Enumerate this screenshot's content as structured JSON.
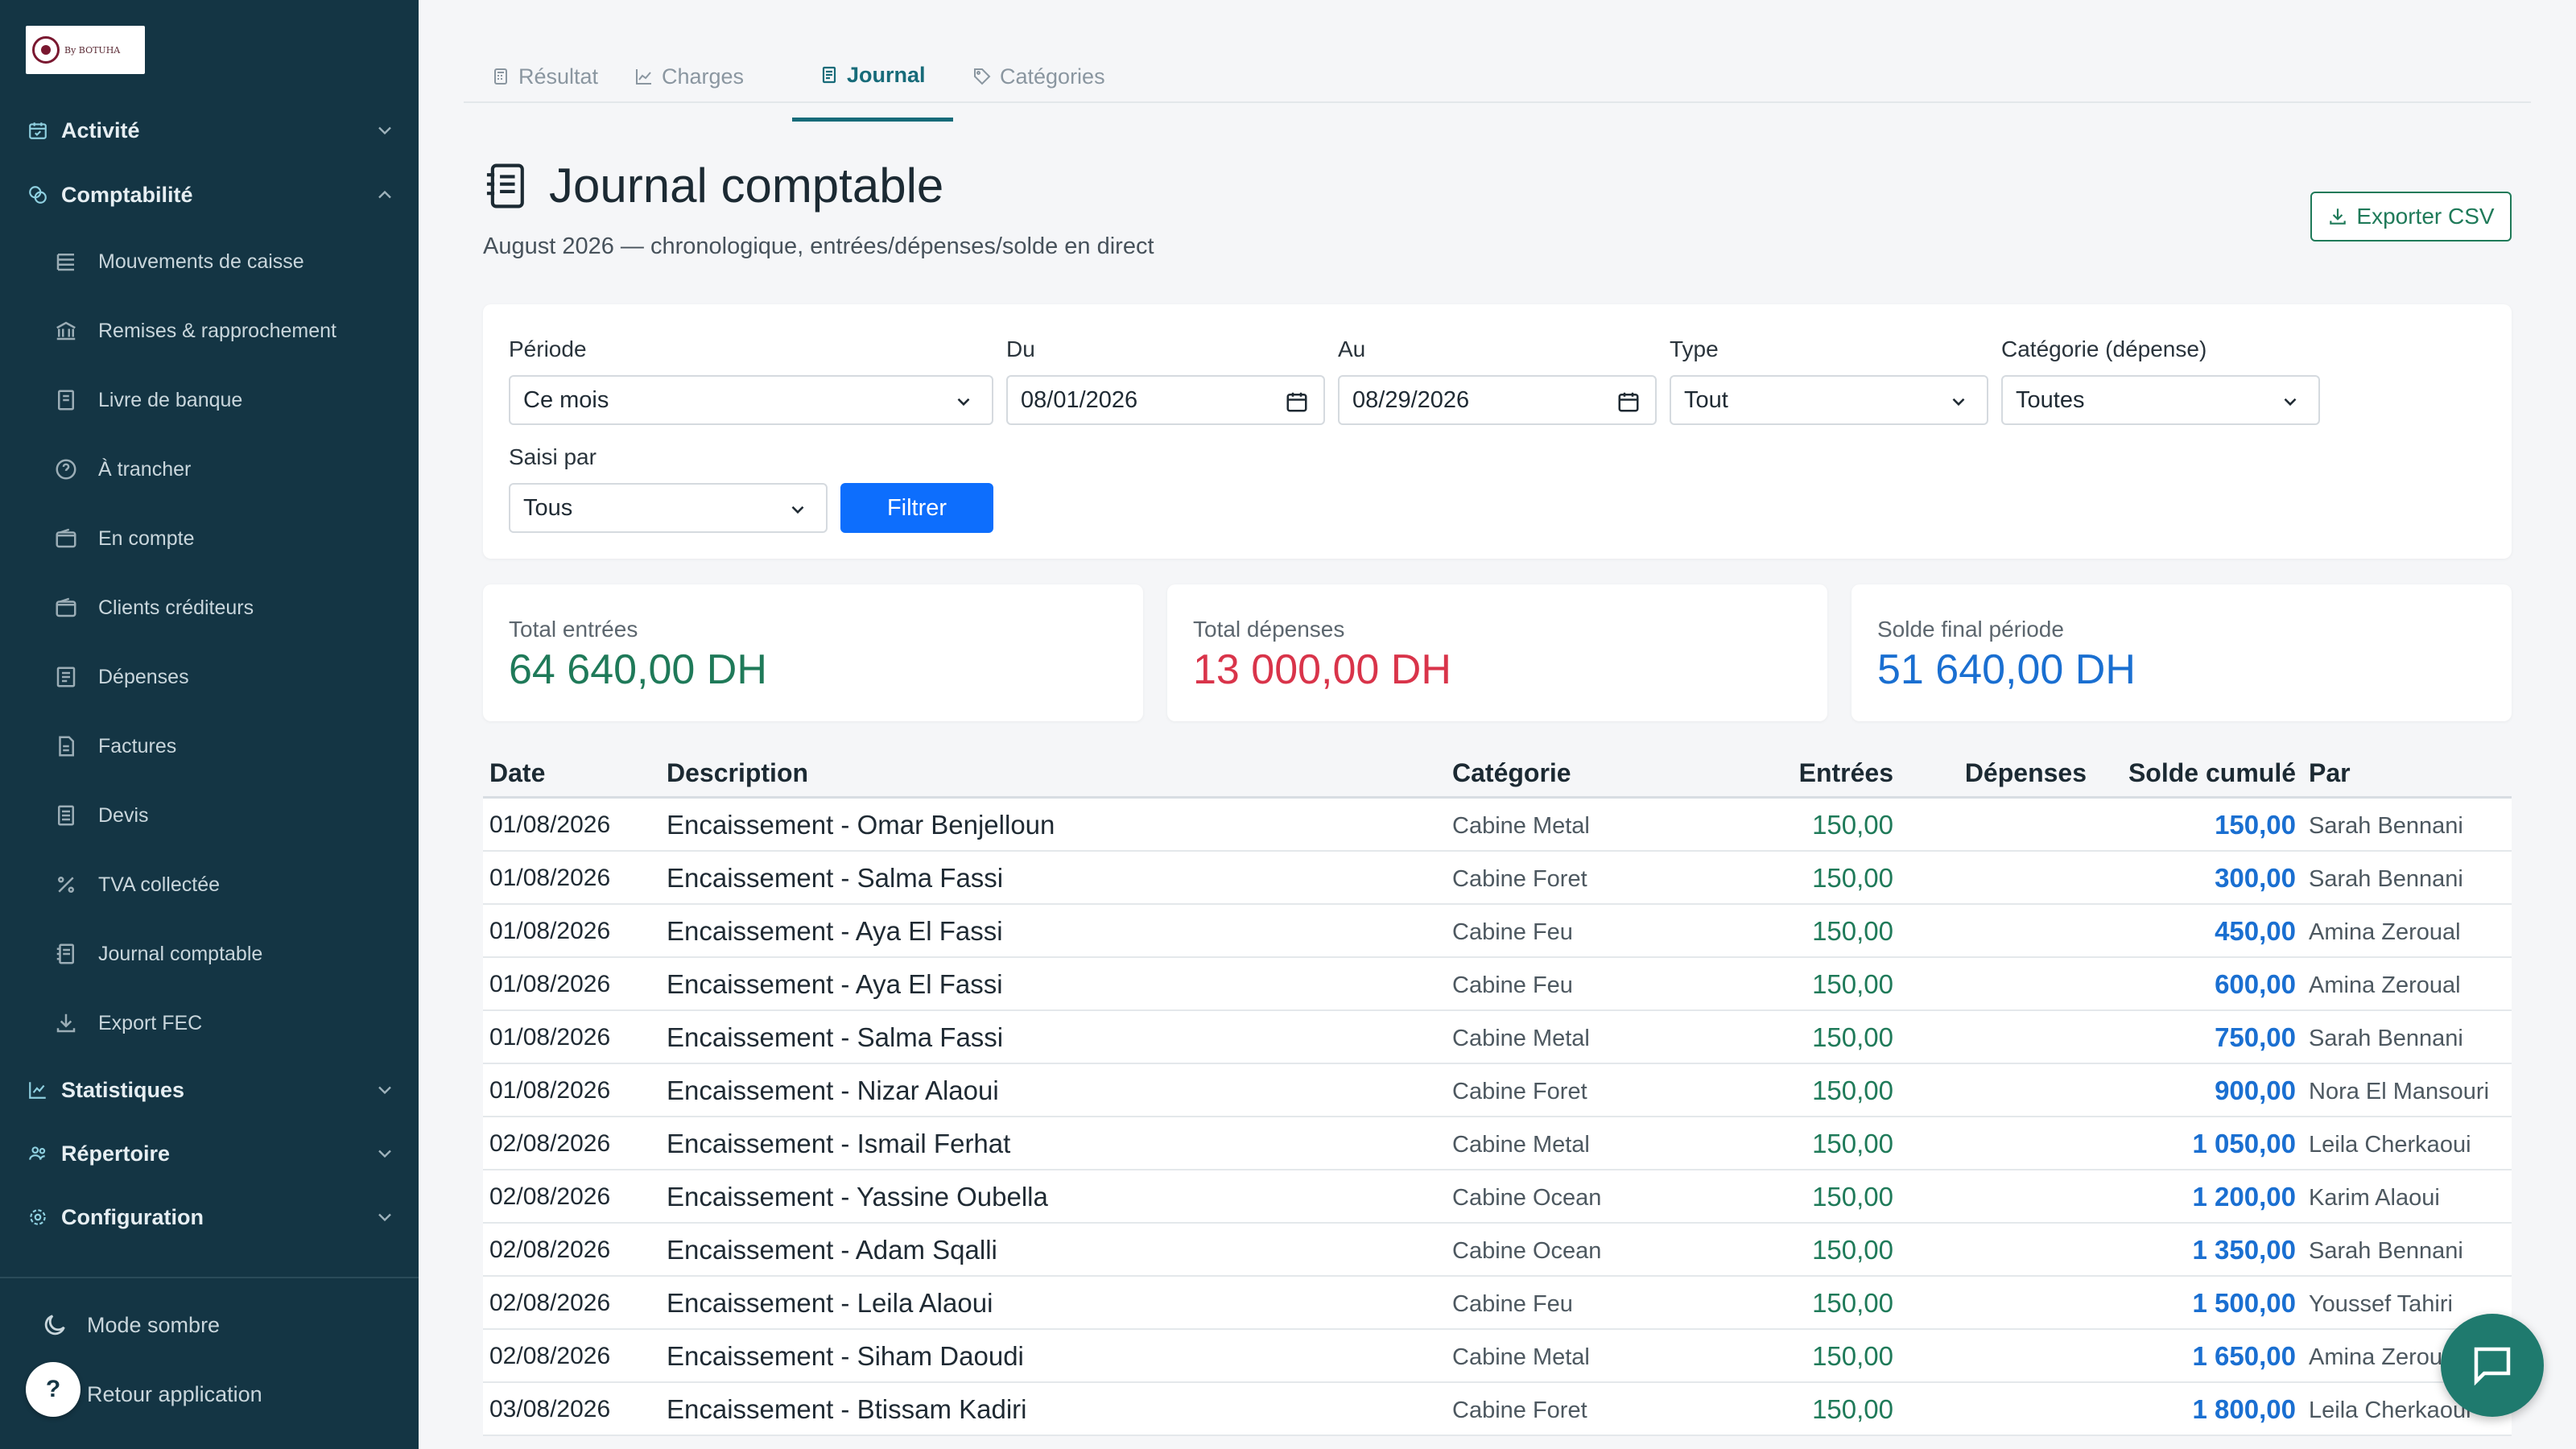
{
  "brand": {
    "logo_text": "By BOTUHA"
  },
  "sidebar": {
    "sections": [
      {
        "label": "Activité",
        "icon": "calendar-check-icon",
        "expanded": false
      },
      {
        "label": "Comptabilité",
        "icon": "coins-icon",
        "expanded": true
      },
      {
        "label": "Statistiques",
        "icon": "chart-line-icon",
        "expanded": false
      },
      {
        "label": "Répertoire",
        "icon": "people-icon",
        "expanded": false
      },
      {
        "label": "Configuration",
        "icon": "gear-icon",
        "expanded": false
      }
    ],
    "items": [
      {
        "label": "Mouvements de caisse",
        "icon": "list-icon"
      },
      {
        "label": "Remises & rapprochement",
        "icon": "bank-icon"
      },
      {
        "label": "Livre de banque",
        "icon": "book-icon"
      },
      {
        "label": "À trancher",
        "icon": "question-icon"
      },
      {
        "label": "En compte",
        "icon": "wallet-icon"
      },
      {
        "label": "Clients créditeurs",
        "icon": "wallet-icon"
      },
      {
        "label": "Dépenses",
        "icon": "receipt-icon"
      },
      {
        "label": "Factures",
        "icon": "file-icon"
      },
      {
        "label": "Devis",
        "icon": "file-text-icon"
      },
      {
        "label": "TVA collectée",
        "icon": "percent-icon"
      },
      {
        "label": "Journal comptable",
        "icon": "journal-icon"
      },
      {
        "label": "Export FEC",
        "icon": "download-icon"
      }
    ],
    "bottom": {
      "dark_mode": "Mode sombre",
      "back": "Retour application",
      "help": "?"
    }
  },
  "tabs": [
    {
      "label": "Résultat",
      "icon": "calculator-icon",
      "active": false
    },
    {
      "label": "Charges",
      "icon": "chart-area-icon",
      "active": false
    },
    {
      "label": "Journal",
      "icon": "journal-icon",
      "active": true
    },
    {
      "label": "Catégories",
      "icon": "tag-icon",
      "active": false
    }
  ],
  "header": {
    "title": "Journal comptable",
    "subtitle": "August 2026 — chronologique, entrées/dépenses/solde en direct",
    "export_label": "Exporter CSV"
  },
  "filters": {
    "period_label": "Période",
    "period_value": "Ce mois",
    "from_label": "Du",
    "from_value": "08/01/2026",
    "to_label": "Au",
    "to_value": "08/29/2026",
    "type_label": "Type",
    "type_value": "Tout",
    "category_label": "Catégorie (dépense)",
    "category_value": "Toutes",
    "entered_by_label": "Saisi par",
    "entered_by_value": "Tous",
    "submit_label": "Filtrer"
  },
  "stats": {
    "income_label": "Total entrées",
    "income_value": "64 640,00 DH",
    "expense_label": "Total dépenses",
    "expense_value": "13 000,00 DH",
    "balance_label": "Solde final période",
    "balance_value": "51 640,00 DH"
  },
  "colors": {
    "sidebar_bg": "#143544",
    "accent": "#176b79",
    "income": "#1f7a59",
    "expense": "#d9344a",
    "balance": "#1a6fd1",
    "primary_button": "#0d6efd"
  },
  "table": {
    "columns": [
      "Date",
      "Description",
      "Catégorie",
      "Entrées",
      "Dépenses",
      "Solde cumulé",
      "Par"
    ],
    "rows": [
      {
        "date": "01/08/2026",
        "description": "Encaissement - Omar Benjelloun",
        "category": "Cabine Metal",
        "income": "150,00",
        "expense": "",
        "balance": "150,00",
        "by": "Sarah Bennani"
      },
      {
        "date": "01/08/2026",
        "description": "Encaissement - Salma Fassi",
        "category": "Cabine Foret",
        "income": "150,00",
        "expense": "",
        "balance": "300,00",
        "by": "Sarah Bennani"
      },
      {
        "date": "01/08/2026",
        "description": "Encaissement - Aya El Fassi",
        "category": "Cabine Feu",
        "income": "150,00",
        "expense": "",
        "balance": "450,00",
        "by": "Amina Zeroual"
      },
      {
        "date": "01/08/2026",
        "description": "Encaissement - Aya El Fassi",
        "category": "Cabine Feu",
        "income": "150,00",
        "expense": "",
        "balance": "600,00",
        "by": "Amina Zeroual"
      },
      {
        "date": "01/08/2026",
        "description": "Encaissement - Salma Fassi",
        "category": "Cabine Metal",
        "income": "150,00",
        "expense": "",
        "balance": "750,00",
        "by": "Sarah Bennani"
      },
      {
        "date": "01/08/2026",
        "description": "Encaissement - Nizar Alaoui",
        "category": "Cabine Foret",
        "income": "150,00",
        "expense": "",
        "balance": "900,00",
        "by": "Nora El Mansouri"
      },
      {
        "date": "02/08/2026",
        "description": "Encaissement - Ismail Ferhat",
        "category": "Cabine Metal",
        "income": "150,00",
        "expense": "",
        "balance": "1 050,00",
        "by": "Leila Cherkaoui"
      },
      {
        "date": "02/08/2026",
        "description": "Encaissement - Yassine Oubella",
        "category": "Cabine Ocean",
        "income": "150,00",
        "expense": "",
        "balance": "1 200,00",
        "by": "Karim Alaoui"
      },
      {
        "date": "02/08/2026",
        "description": "Encaissement - Adam Sqalli",
        "category": "Cabine Ocean",
        "income": "150,00",
        "expense": "",
        "balance": "1 350,00",
        "by": "Sarah Bennani"
      },
      {
        "date": "02/08/2026",
        "description": "Encaissement - Leila Alaoui",
        "category": "Cabine Feu",
        "income": "150,00",
        "expense": "",
        "balance": "1 500,00",
        "by": "Youssef Tahiri"
      },
      {
        "date": "02/08/2026",
        "description": "Encaissement - Siham Daoudi",
        "category": "Cabine Metal",
        "income": "150,00",
        "expense": "",
        "balance": "1 650,00",
        "by": "Amina Zeroual"
      },
      {
        "date": "03/08/2026",
        "description": "Encaissement - Btissam Kadiri",
        "category": "Cabine Foret",
        "income": "150,00",
        "expense": "",
        "balance": "1 800,00",
        "by": "Leila Cherkaoui"
      }
    ]
  }
}
